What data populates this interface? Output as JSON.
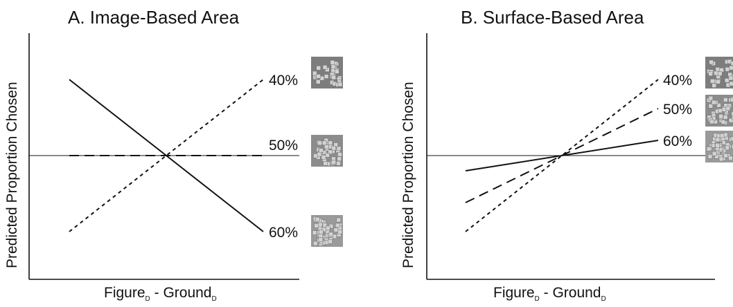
{
  "chart_data": [
    {
      "type": "line",
      "title": "A. Image-Based Area",
      "ylabel": "Predicted Proportion Chosen",
      "xlabel": {
        "main": "Figure",
        "sub": "D",
        "sep": " - ",
        "main2": "Ground",
        "sub2": "D"
      },
      "x": [
        -1,
        1
      ],
      "ylim": [
        -1,
        1
      ],
      "reference_line": 0,
      "series": [
        {
          "name": "40%",
          "dash": "dotted",
          "values": [
            -0.55,
            0.55
          ]
        },
        {
          "name": "50%",
          "dash": "dashed",
          "values": [
            0.0,
            0.0
          ]
        },
        {
          "name": "60%",
          "dash": "solid",
          "values": [
            0.55,
            -0.55
          ]
        }
      ]
    },
    {
      "type": "line",
      "title": "B. Surface-Based Area",
      "ylabel": "Predicted Proportion Chosen",
      "xlabel": {
        "main": "Figure",
        "sub": "D",
        "sep": " - ",
        "main2": "Ground",
        "sub2": "D"
      },
      "x": [
        -1,
        1
      ],
      "ylim": [
        -1,
        1
      ],
      "reference_line": 0,
      "series": [
        {
          "name": "40%",
          "dash": "dotted",
          "values": [
            -0.55,
            0.55
          ]
        },
        {
          "name": "50%",
          "dash": "dashed",
          "values": [
            -0.34,
            0.34
          ]
        },
        {
          "name": "60%",
          "dash": "solid",
          "values": [
            -0.11,
            0.11
          ]
        }
      ]
    }
  ],
  "swatches": [
    {
      "panel": 0,
      "series": "40%",
      "density": "sparse",
      "color": "#7d7d7d"
    },
    {
      "panel": 0,
      "series": "50%",
      "density": "medium",
      "color": "#8c8c8c"
    },
    {
      "panel": 0,
      "series": "60%",
      "density": "dense",
      "color": "#9a9a9a"
    },
    {
      "panel": 1,
      "series": "40%",
      "density": "sparse",
      "color": "#7d7d7d"
    },
    {
      "panel": 1,
      "series": "50%",
      "density": "medium",
      "color": "#8c8c8c"
    },
    {
      "panel": 1,
      "series": "60%",
      "density": "dense",
      "color": "#9a9a9a"
    }
  ]
}
